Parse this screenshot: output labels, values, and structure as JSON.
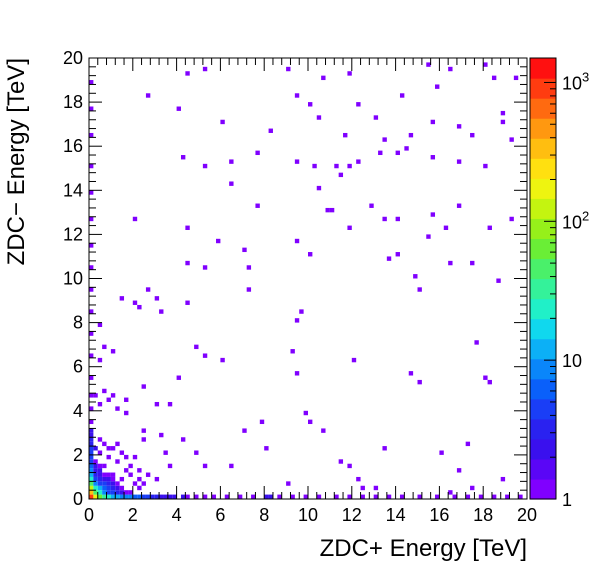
{
  "chart_data": {
    "type": "heatmap",
    "xlabel": "ZDC+ Energy [TeV]",
    "ylabel": "ZDC− Energy [TeV]",
    "xlim": [
      0,
      20
    ],
    "ylim": [
      0,
      20
    ],
    "bin_width": 0.2,
    "x_ticks": [
      0,
      2,
      4,
      6,
      8,
      10,
      12,
      14,
      16,
      18,
      20
    ],
    "y_ticks": [
      0,
      2,
      4,
      6,
      8,
      10,
      12,
      14,
      16,
      18,
      20
    ],
    "x_tick_labels": [
      "0",
      "2",
      "4",
      "6",
      "8",
      "10",
      "12",
      "14",
      "16",
      "18",
      "20"
    ],
    "y_tick_labels": [
      "0",
      "2",
      "4",
      "6",
      "8",
      "10",
      "12",
      "14",
      "16",
      "18",
      "20"
    ],
    "z_scale": "log",
    "z_range": [
      1,
      1500
    ],
    "colorbar": {
      "ticks": [
        1,
        10,
        100,
        1000
      ],
      "labels": [
        {
          "base": "1",
          "exp": ""
        },
        {
          "base": "10",
          "exp": ""
        },
        {
          "base": "10",
          "exp": "2"
        },
        {
          "base": "10",
          "exp": "3"
        }
      ],
      "colors": [
        "#8000ff",
        "#5a06f6",
        "#3a10ee",
        "#2a22f0",
        "#1a3ef6",
        "#0a60fa",
        "#0a86fa",
        "#0cb0f6",
        "#10d8ee",
        "#20f0c8",
        "#34f29a",
        "#4af06a",
        "#6aee36",
        "#96f01a",
        "#c4f410",
        "#eef410",
        "#ffe010",
        "#ffbe10",
        "#ff9810",
        "#ff6a10",
        "#ff3c10",
        "#ff1010"
      ]
    },
    "grid": false,
    "bins": [
      [
        0.1,
        0.1,
        900
      ],
      [
        0.3,
        0.1,
        150
      ],
      [
        0.5,
        0.1,
        60
      ],
      [
        0.7,
        0.1,
        35
      ],
      [
        0.9,
        0.1,
        20
      ],
      [
        1.1,
        0.1,
        14
      ],
      [
        1.3,
        0.1,
        11
      ],
      [
        1.5,
        0.1,
        10
      ],
      [
        1.7,
        0.1,
        9
      ],
      [
        1.9,
        0.1,
        8
      ],
      [
        2.1,
        0.1,
        7
      ],
      [
        2.3,
        0.1,
        6
      ],
      [
        2.5,
        0.1,
        5
      ],
      [
        2.7,
        0.1,
        4
      ],
      [
        2.9,
        0.1,
        3
      ],
      [
        3.1,
        0.1,
        3
      ],
      [
        3.3,
        0.1,
        2
      ],
      [
        3.5,
        0.1,
        2
      ],
      [
        3.7,
        0.1,
        2
      ],
      [
        3.9,
        0.1,
        2
      ],
      [
        4.3,
        0.1,
        2
      ],
      [
        4.5,
        0.1,
        1
      ],
      [
        4.9,
        0.1,
        1
      ],
      [
        5.3,
        0.1,
        1
      ],
      [
        5.7,
        0.1,
        1
      ],
      [
        6.3,
        0.1,
        1
      ],
      [
        6.9,
        0.1,
        1
      ],
      [
        7.5,
        0.1,
        1
      ],
      [
        8.1,
        0.1,
        2
      ],
      [
        8.3,
        0.1,
        2
      ],
      [
        8.7,
        0.1,
        1
      ],
      [
        9.3,
        0.1,
        1
      ],
      [
        9.9,
        0.1,
        1
      ],
      [
        10.5,
        0.1,
        1
      ],
      [
        11.3,
        0.1,
        1
      ],
      [
        11.9,
        0.1,
        1
      ],
      [
        12.5,
        0.1,
        1
      ],
      [
        13.1,
        0.1,
        1
      ],
      [
        13.7,
        0.1,
        1
      ],
      [
        14.3,
        0.1,
        1
      ],
      [
        15.1,
        0.1,
        1
      ],
      [
        15.9,
        0.1,
        1
      ],
      [
        16.7,
        0.1,
        1
      ],
      [
        17.3,
        0.1,
        1
      ],
      [
        17.9,
        0.1,
        1
      ],
      [
        18.5,
        0.1,
        1
      ],
      [
        19.1,
        0.1,
        1
      ],
      [
        19.7,
        0.1,
        1
      ],
      [
        0.1,
        0.3,
        300
      ],
      [
        0.1,
        0.5,
        120
      ],
      [
        0.1,
        0.7,
        40
      ],
      [
        0.1,
        0.9,
        20
      ],
      [
        0.1,
        1.1,
        12
      ],
      [
        0.1,
        1.3,
        8
      ],
      [
        0.1,
        1.5,
        6
      ],
      [
        0.1,
        1.7,
        5
      ],
      [
        0.1,
        1.9,
        5
      ],
      [
        0.1,
        2.1,
        4
      ],
      [
        0.1,
        2.3,
        4
      ],
      [
        0.1,
        2.5,
        3
      ],
      [
        0.1,
        2.7,
        3
      ],
      [
        0.1,
        2.9,
        2
      ],
      [
        0.1,
        3.1,
        2
      ],
      [
        0.1,
        3.5,
        1
      ],
      [
        0.1,
        4.1,
        1
      ],
      [
        0.1,
        4.7,
        1
      ],
      [
        0.1,
        5.5,
        1
      ],
      [
        0.1,
        6.5,
        1
      ],
      [
        0.1,
        7.5,
        1
      ],
      [
        0.1,
        8.5,
        1
      ],
      [
        0.1,
        9.5,
        1
      ],
      [
        0.1,
        10.5,
        1
      ],
      [
        0.1,
        11.5,
        1
      ],
      [
        0.1,
        12.7,
        1
      ],
      [
        0.1,
        13.9,
        1
      ],
      [
        0.1,
        15.1,
        1
      ],
      [
        0.1,
        16.5,
        1
      ],
      [
        0.1,
        17.7,
        1
      ],
      [
        0.1,
        18.9,
        1
      ],
      [
        0.3,
        0.3,
        45
      ],
      [
        0.5,
        0.3,
        25
      ],
      [
        0.3,
        0.5,
        20
      ],
      [
        0.5,
        0.5,
        12
      ],
      [
        0.7,
        0.3,
        10
      ],
      [
        0.3,
        0.7,
        8
      ],
      [
        0.7,
        0.5,
        6
      ],
      [
        0.5,
        0.7,
        5
      ],
      [
        0.9,
        0.3,
        5
      ],
      [
        0.3,
        0.9,
        5
      ],
      [
        0.9,
        0.5,
        4
      ],
      [
        0.7,
        0.7,
        4
      ],
      [
        1.1,
        0.3,
        4
      ],
      [
        0.5,
        0.9,
        3
      ],
      [
        0.3,
        1.1,
        3
      ],
      [
        1.1,
        0.5,
        3
      ],
      [
        0.9,
        0.7,
        3
      ],
      [
        1.3,
        0.3,
        3
      ],
      [
        0.7,
        0.9,
        2
      ],
      [
        0.5,
        1.1,
        2
      ],
      [
        0.3,
        1.3,
        2
      ],
      [
        1.3,
        0.5,
        2
      ],
      [
        1.5,
        0.3,
        2
      ],
      [
        1.1,
        0.7,
        2
      ],
      [
        0.9,
        0.9,
        2
      ],
      [
        0.3,
        1.5,
        2
      ],
      [
        0.5,
        1.3,
        2
      ],
      [
        1.5,
        0.5,
        1
      ],
      [
        1.7,
        0.3,
        1
      ],
      [
        0.7,
        1.1,
        1
      ],
      [
        1.3,
        0.7,
        1
      ],
      [
        0.3,
        1.7,
        1
      ],
      [
        1.9,
        0.3,
        1
      ],
      [
        0.5,
        1.5,
        1
      ],
      [
        1.1,
        0.9,
        1
      ],
      [
        0.9,
        1.1,
        1
      ],
      [
        2.3,
        0.5,
        1
      ],
      [
        0.3,
        2.3,
        2
      ],
      [
        1.1,
        1.1,
        1
      ],
      [
        0.7,
        1.5,
        1
      ],
      [
        1.5,
        0.9,
        1
      ],
      [
        2.1,
        0.7,
        1
      ],
      [
        0.9,
        1.9,
        1
      ],
      [
        1.7,
        1.3,
        1
      ],
      [
        0.5,
        2.1,
        1
      ],
      [
        1.3,
        1.7,
        1
      ],
      [
        2.5,
        0.7,
        1
      ],
      [
        0.7,
        2.5,
        1
      ],
      [
        1.9,
        1.1,
        1
      ],
      [
        1.1,
        2.3,
        1
      ],
      [
        4.5,
        19.3,
        1
      ],
      [
        5.3,
        19.5,
        1
      ],
      [
        9.1,
        19.5,
        1
      ],
      [
        10.7,
        19.1,
        1
      ],
      [
        11.9,
        19.3,
        1
      ],
      [
        15.5,
        19.7,
        1
      ],
      [
        16.5,
        19.5,
        1
      ],
      [
        18.1,
        19.7,
        1
      ],
      [
        18.5,
        19.1,
        1
      ],
      [
        19.5,
        19.1,
        1
      ],
      [
        2.7,
        18.3,
        1
      ],
      [
        4.1,
        17.7,
        1
      ],
      [
        9.5,
        18.3,
        1
      ],
      [
        10.1,
        17.9,
        1
      ],
      [
        12.3,
        17.9,
        1
      ],
      [
        14.3,
        18.3,
        1
      ],
      [
        15.9,
        18.7,
        1
      ],
      [
        18.9,
        17.5,
        1
      ],
      [
        6.1,
        17.1,
        1
      ],
      [
        8.3,
        16.7,
        1
      ],
      [
        10.5,
        17.3,
        1
      ],
      [
        11.7,
        16.5,
        1
      ],
      [
        13.1,
        17.3,
        1
      ],
      [
        13.5,
        16.3,
        1
      ],
      [
        14.7,
        16.5,
        1
      ],
      [
        15.7,
        17.1,
        1
      ],
      [
        16.9,
        16.9,
        1
      ],
      [
        17.5,
        16.5,
        1
      ],
      [
        18.9,
        17.1,
        1
      ],
      [
        4.3,
        15.5,
        1
      ],
      [
        5.3,
        15.1,
        1
      ],
      [
        6.5,
        15.3,
        1
      ],
      [
        7.7,
        15.7,
        1
      ],
      [
        9.5,
        15.3,
        1
      ],
      [
        10.3,
        15.1,
        1
      ],
      [
        11.3,
        15.1,
        1
      ],
      [
        11.9,
        15.1,
        1
      ],
      [
        12.3,
        15.3,
        1
      ],
      [
        13.3,
        15.7,
        1
      ],
      [
        14.1,
        15.7,
        1
      ],
      [
        14.5,
        15.9,
        1
      ],
      [
        15.7,
        15.5,
        1
      ],
      [
        16.9,
        15.3,
        1
      ],
      [
        18.1,
        15.1,
        1
      ],
      [
        19.3,
        16.3,
        1
      ],
      [
        11.5,
        14.7,
        1
      ],
      [
        6.5,
        14.3,
        1
      ],
      [
        10.5,
        14.1,
        1
      ],
      [
        7.7,
        13.3,
        1
      ],
      [
        10.9,
        13.1,
        1
      ],
      [
        11.1,
        13.1,
        1
      ],
      [
        12.9,
        13.3,
        1
      ],
      [
        13.5,
        12.7,
        1
      ],
      [
        14.1,
        12.7,
        1
      ],
      [
        15.7,
        12.9,
        1
      ],
      [
        16.9,
        13.3,
        1
      ],
      [
        2.1,
        12.7,
        1
      ],
      [
        4.5,
        12.3,
        1
      ],
      [
        5.9,
        11.7,
        1
      ],
      [
        9.5,
        11.7,
        1
      ],
      [
        11.9,
        12.3,
        1
      ],
      [
        15.5,
        11.9,
        1
      ],
      [
        16.3,
        12.3,
        1
      ],
      [
        18.3,
        12.3,
        1
      ],
      [
        19.3,
        12.7,
        1
      ],
      [
        7.1,
        11.3,
        1
      ],
      [
        10.1,
        11.1,
        1
      ],
      [
        13.7,
        10.9,
        1
      ],
      [
        14.1,
        11.1,
        1
      ],
      [
        16.5,
        10.7,
        1
      ],
      [
        17.5,
        10.7,
        1
      ],
      [
        4.5,
        10.7,
        1
      ],
      [
        5.3,
        10.5,
        1
      ],
      [
        7.3,
        10.5,
        1
      ],
      [
        14.9,
        10.1,
        1
      ],
      [
        18.7,
        9.9,
        1
      ],
      [
        15.1,
        9.5,
        1
      ],
      [
        7.3,
        9.5,
        1
      ],
      [
        1.5,
        9.1,
        1
      ],
      [
        2.7,
        9.5,
        1
      ],
      [
        2.1,
        8.9,
        1
      ],
      [
        3.1,
        9.1,
        1
      ],
      [
        2.3,
        8.7,
        1
      ],
      [
        3.3,
        8.5,
        1
      ],
      [
        4.5,
        8.9,
        1
      ],
      [
        9.7,
        8.5,
        1
      ],
      [
        9.5,
        8.1,
        1
      ],
      [
        0.5,
        7.9,
        1
      ],
      [
        5.3,
        6.5,
        1
      ],
      [
        4.9,
        6.9,
        1
      ],
      [
        6.1,
        6.3,
        1
      ],
      [
        9.3,
        6.7,
        1
      ],
      [
        12.1,
        6.3,
        1
      ],
      [
        17.7,
        7.1,
        1
      ],
      [
        1.1,
        6.7,
        1
      ],
      [
        0.5,
        6.3,
        1
      ],
      [
        0.7,
        6.9,
        1
      ],
      [
        4.1,
        5.5,
        1
      ],
      [
        9.5,
        5.7,
        1
      ],
      [
        14.7,
        5.7,
        1
      ],
      [
        15.1,
        5.3,
        1
      ],
      [
        18.1,
        5.5,
        1
      ],
      [
        18.3,
        5.3,
        1
      ],
      [
        2.5,
        5.1,
        1
      ],
      [
        0.7,
        4.9,
        1
      ],
      [
        1.1,
        4.7,
        1
      ],
      [
        1.7,
        4.5,
        1
      ],
      [
        3.1,
        4.3,
        1
      ],
      [
        3.7,
        4.3,
        1
      ],
      [
        1.7,
        3.9,
        1
      ],
      [
        9.9,
        3.9,
        1
      ],
      [
        10.1,
        3.5,
        1
      ],
      [
        7.9,
        3.5,
        1
      ],
      [
        0.5,
        4.3,
        1
      ],
      [
        0.9,
        4.5,
        1
      ],
      [
        1.3,
        4.1,
        1
      ],
      [
        0.3,
        4.7,
        1
      ],
      [
        7.1,
        3.1,
        1
      ],
      [
        10.7,
        3.1,
        1
      ],
      [
        3.3,
        2.9,
        1
      ],
      [
        4.3,
        2.7,
        1
      ],
      [
        2.5,
        3.1,
        1
      ],
      [
        13.5,
        2.3,
        1
      ],
      [
        17.3,
        2.5,
        1
      ],
      [
        2.5,
        2.7,
        1
      ],
      [
        8.1,
        2.3,
        1
      ],
      [
        4.9,
        2.1,
        1
      ],
      [
        3.5,
        2.1,
        1
      ],
      [
        16.1,
        2.1,
        1
      ],
      [
        2.1,
        1.9,
        1
      ],
      [
        5.3,
        1.5,
        1
      ],
      [
        6.5,
        1.5,
        1
      ],
      [
        3.7,
        1.5,
        1
      ],
      [
        11.5,
        1.7,
        1
      ],
      [
        11.9,
        1.5,
        1
      ],
      [
        16.9,
        1.3,
        1
      ],
      [
        12.3,
        0.9,
        1
      ],
      [
        18.9,
        0.9,
        1
      ],
      [
        9.1,
        0.7,
        1
      ],
      [
        12.5,
        0.5,
        1
      ],
      [
        17.5,
        0.5,
        1
      ],
      [
        16.5,
        0.3,
        1
      ],
      [
        13.1,
        0.5,
        1
      ],
      [
        1.5,
        2.1,
        1
      ],
      [
        1.9,
        1.5,
        1
      ],
      [
        2.3,
        1.3,
        1
      ],
      [
        0.9,
        2.3,
        1
      ],
      [
        0.5,
        2.7,
        1
      ],
      [
        1.3,
        2.5,
        1
      ],
      [
        1.7,
        1.9,
        1
      ],
      [
        2.7,
        1.1,
        1
      ],
      [
        2.3,
        0.9,
        1
      ],
      [
        3.1,
        0.9,
        1
      ]
    ]
  }
}
